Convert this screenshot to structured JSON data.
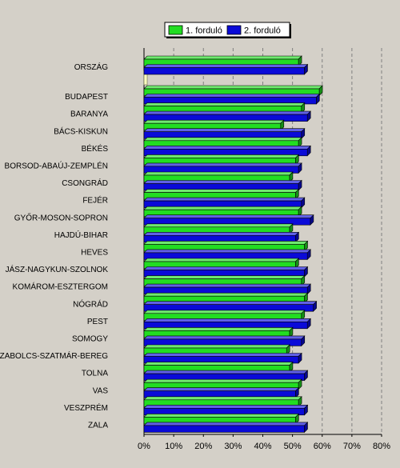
{
  "chart_data": {
    "type": "bar",
    "orientation": "horizontal",
    "title": "",
    "xlabel": "",
    "ylabel": "",
    "xlim": [
      0,
      80
    ],
    "x_tick_values": [
      0,
      10,
      20,
      30,
      40,
      50,
      60,
      70,
      80
    ],
    "x_tick_labels": [
      "0%",
      "10%",
      "20%",
      "30%",
      "40%",
      "50%",
      "60%",
      "70%",
      "80%"
    ],
    "grid": true,
    "legend_position": "top",
    "categories": [
      "ORSZÁG",
      "BUDAPEST",
      "BARANYA",
      "BÁCS-KISKUN",
      "BÉKÉS",
      "BORSOD-ABAÚJ-ZEMPLÉN",
      "CSONGRÁD",
      "FEJÉR",
      "GYŐR-MOSON-SOPRON",
      "HAJDÚ-BIHAR",
      "HEVES",
      "JÁSZ-NAGYKUN-SZOLNOK",
      "KOMÁROM-ESZTERGOM",
      "NÓGRÁD",
      "PEST",
      "SOMOGY",
      "SZABOLCS-SZATMÁR-BEREG",
      "TOLNA",
      "VAS",
      "VESZPRÉM",
      "ZALA"
    ],
    "series": [
      {
        "name": "1. forduló",
        "color": "#22dd22",
        "values": [
          52,
          59,
          53,
          46,
          52,
          51,
          49,
          51,
          52,
          49,
          54,
          51,
          53,
          54,
          53,
          49,
          48,
          49,
          52,
          52,
          51
        ]
      },
      {
        "name": "2. forduló",
        "color": "#0a0ad8",
        "values": [
          54,
          58,
          55,
          53,
          55,
          52,
          52,
          53,
          56,
          51,
          55,
          54,
          55,
          57,
          55,
          53,
          52,
          54,
          51,
          54,
          54
        ]
      }
    ]
  }
}
